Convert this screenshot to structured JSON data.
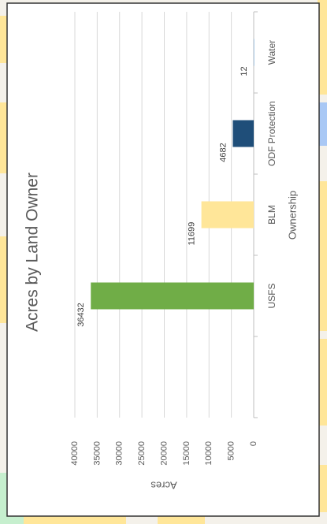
{
  "chart_data": {
    "type": "bar",
    "title": "Acres by Land Owner",
    "categories": [
      null,
      "USFS",
      "BLM",
      "ODF Protection",
      "Water"
    ],
    "values": [
      null,
      36432,
      11699,
      4682,
      12
    ],
    "colors": [
      null,
      "#70ad47",
      "#ffe699",
      "#1f4e79",
      "#5b9bd5"
    ],
    "xlabel": "Ownership",
    "ylabel": "Acres",
    "ylim": [
      0,
      40000
    ],
    "yticks": [
      0,
      5000,
      10000,
      15000,
      20000,
      25000,
      30000,
      35000,
      40000
    ],
    "grid": true,
    "data_labels": true
  }
}
